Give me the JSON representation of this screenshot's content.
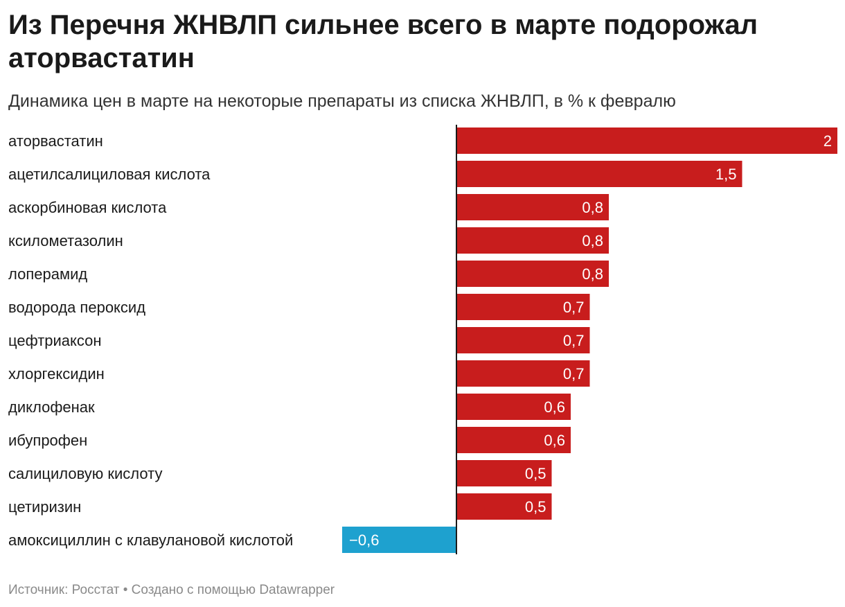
{
  "title": "Из Перечня ЖНВЛП сильнее всего в марте подорожал аторвастатин",
  "subtitle": "Динамика цен в марте на некоторые препараты из списка ЖНВЛП, в % к февралю",
  "footer": {
    "source_label": "Источник:",
    "source": "Росстат",
    "separator": "•",
    "credit": "Создано с помощью Datawrapper"
  },
  "colors": {
    "positive": "#c81d1d",
    "negative": "#1ea1cf",
    "axis": "#1a1a1a"
  },
  "chart_data": {
    "type": "bar",
    "orientation": "horizontal",
    "title": "Из Перечня ЖНВЛП сильнее всего в марте подорожал аторвастатин",
    "subtitle": "Динамика цен в марте на некоторые препараты из списка ЖНВЛП, в % к февралю",
    "categories": [
      "аторвастатин",
      "ацетилсалициловая кислота",
      "аскорбиновая кислота",
      "ксилометазолин",
      "лоперамид",
      "водорода пероксид",
      "цефтриаксон",
      "хлоргексидин",
      "диклофенак",
      "ибупрофен",
      "салициловую кислоту",
      "цетиризин",
      "амоксициллин с клавулановой кислотой"
    ],
    "values": [
      2,
      1.5,
      0.8,
      0.8,
      0.8,
      0.7,
      0.7,
      0.7,
      0.6,
      0.6,
      0.5,
      0.5,
      -0.6
    ],
    "value_labels": [
      "2",
      "1,5",
      "0,8",
      "0,8",
      "0,8",
      "0,7",
      "0,7",
      "0,7",
      "0,6",
      "0,6",
      "0,5",
      "0,5",
      "−0,6"
    ],
    "xlim": [
      -0.6,
      2
    ],
    "grid": false,
    "legend": "none"
  }
}
